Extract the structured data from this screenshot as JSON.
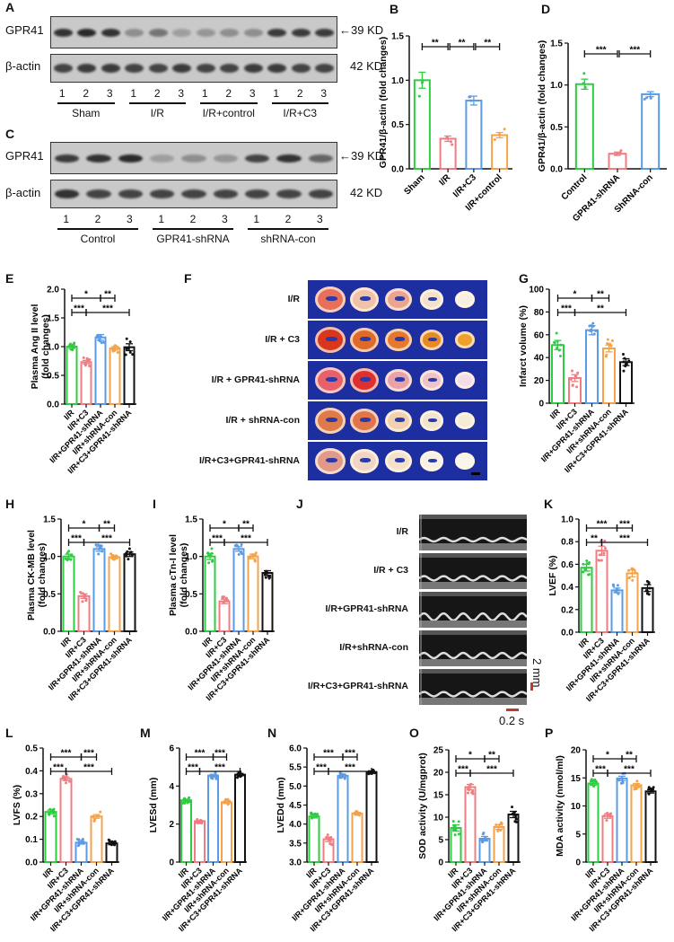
{
  "colors": {
    "green": "#2ecc40",
    "pink": "#f07c82",
    "blue": "#5b9be6",
    "orange": "#f4a34a",
    "black": "#111111",
    "ttc_bg": "#1d2fa0",
    "scale_red": "#c0392b"
  },
  "panelA": {
    "label": "A",
    "rows": [
      "GPR41",
      "β-actin"
    ],
    "kd": [
      "39 KD",
      "42 KD"
    ],
    "lanes": [
      "1",
      "2",
      "3",
      "1",
      "2",
      "3",
      "1",
      "2",
      "3",
      "1",
      "2",
      "3"
    ],
    "groups": [
      "Sham",
      "I/R",
      "I/R+control",
      "I/R+C3"
    ]
  },
  "panelC": {
    "label": "C",
    "rows": [
      "GPR41",
      "β-actin"
    ],
    "kd": [
      "39 KD",
      "42 KD"
    ],
    "lanes": [
      "1",
      "2",
      "3",
      "1",
      "2",
      "3",
      "1",
      "2",
      "3"
    ],
    "groups": [
      "Control",
      "GPR41-shRNA",
      "shRNA-con"
    ]
  },
  "panelF": {
    "label": "F",
    "rows": [
      "I/R",
      "I/R + C3",
      "I/R + GPR41-shRNA",
      "I/R + shRNA-con",
      "I/R+C3+GPR41-shRNA"
    ]
  },
  "panelJ": {
    "label": "J",
    "rows": [
      "I/R",
      "I/R + C3",
      "I/R+GPR41-shRNA",
      "I/R+shRNA-con",
      "I/R+C3+GPR41-shRNA"
    ],
    "scale_v": "2 mm",
    "scale_h": "0.2 s"
  },
  "chart_data": [
    {
      "panel": "B",
      "type": "bar",
      "title": "",
      "ylabel": "GPR41/β-actin (fold changes)",
      "categories": [
        "Sham",
        "I/R",
        "I/R+C3",
        "I/R+control"
      ],
      "values": [
        1.0,
        0.34,
        0.77,
        0.38
      ],
      "errors": [
        0.09,
        0.03,
        0.05,
        0.03
      ],
      "colors": [
        "#2ecc40",
        "#f07c82",
        "#5b9be6",
        "#f4a34a"
      ],
      "ylim": [
        0,
        1.5
      ],
      "yticks": [
        0.0,
        0.5,
        1.0,
        1.5
      ],
      "significance": [
        {
          "from": 0,
          "to": 1,
          "label": "**",
          "level": 0
        },
        {
          "from": 1,
          "to": 2,
          "label": "**",
          "level": 0
        },
        {
          "from": 2,
          "to": 3,
          "label": "**",
          "level": 0
        }
      ]
    },
    {
      "panel": "D",
      "type": "bar",
      "ylabel": "GPR41/β-actin (fold changes)",
      "categories": [
        "Control",
        "GPR41-shRNA",
        "ShRNA-con"
      ],
      "values": [
        1.01,
        0.18,
        0.89
      ],
      "errors": [
        0.06,
        0.02,
        0.03
      ],
      "colors": [
        "#2ecc40",
        "#f07c82",
        "#5b9be6"
      ],
      "ylim": [
        0,
        1.5
      ],
      "yticks": [
        0.0,
        0.5,
        1.0,
        1.5
      ],
      "significance": [
        {
          "from": 0,
          "to": 1,
          "label": "***",
          "level": 0
        },
        {
          "from": 1,
          "to": 2,
          "label": "***",
          "level": 0
        }
      ]
    },
    {
      "panel": "E",
      "type": "bar",
      "ylabel": "Plasma Ang II level (fold changes)",
      "categories": [
        "I/R",
        "I/R+C3",
        "I/R+GPR41-shRNA",
        "I/R+shRNA-con",
        "I/R+C3+GPR41-shRNA"
      ],
      "values": [
        1.0,
        0.73,
        1.16,
        0.97,
        0.99
      ],
      "errors": [
        0.03,
        0.03,
        0.05,
        0.03,
        0.06
      ],
      "colors": [
        "#2ecc40",
        "#f07c82",
        "#5b9be6",
        "#f4a34a",
        "#111111"
      ],
      "ylim": [
        0,
        2.0
      ],
      "yticks": [
        0.0,
        0.5,
        1.0,
        1.5,
        2.0
      ],
      "significance": [
        {
          "from": 0,
          "to": 2,
          "label": "*",
          "level": 1
        },
        {
          "from": 2,
          "to": 3,
          "label": "**",
          "level": 1
        },
        {
          "from": 0,
          "to": 1,
          "label": "***",
          "level": 0
        },
        {
          "from": 1,
          "to": 4,
          "label": "***",
          "level": 0
        }
      ]
    },
    {
      "panel": "G",
      "type": "bar",
      "ylabel": "Infarct volume (%)",
      "categories": [
        "I/R",
        "I/R+C3",
        "I/R+GPR41-shRNA",
        "I/R+shRNA-con",
        "I/R+C3+GPR41-shRNA"
      ],
      "values": [
        51,
        22,
        64,
        48,
        36
      ],
      "errors": [
        4,
        3,
        4,
        3,
        3
      ],
      "colors": [
        "#2ecc40",
        "#f07c82",
        "#5b9be6",
        "#f4a34a",
        "#111111"
      ],
      "ylim": [
        0,
        100
      ],
      "yticks": [
        0,
        20,
        40,
        60,
        80,
        100
      ],
      "significance": [
        {
          "from": 0,
          "to": 2,
          "label": "*",
          "level": 1
        },
        {
          "from": 2,
          "to": 3,
          "label": "**",
          "level": 1
        },
        {
          "from": 0,
          "to": 1,
          "label": "***",
          "level": 0
        },
        {
          "from": 1,
          "to": 4,
          "label": "**",
          "level": 0
        }
      ]
    },
    {
      "panel": "H",
      "type": "bar",
      "ylabel": "Plasma CK-MB level (fold changes)",
      "categories": [
        "I/R",
        "I/R+C3",
        "I/R+GPR41-shRNA",
        "I/R+shRNA-con",
        "I/R+C3+GPR41-shRNA"
      ],
      "values": [
        1.0,
        0.47,
        1.1,
        0.99,
        1.03
      ],
      "errors": [
        0.03,
        0.03,
        0.03,
        0.02,
        0.03
      ],
      "colors": [
        "#2ecc40",
        "#f07c82",
        "#5b9be6",
        "#f4a34a",
        "#111111"
      ],
      "ylim": [
        0,
        1.5
      ],
      "yticks": [
        0.0,
        0.5,
        1.0,
        1.5
      ],
      "significance": [
        {
          "from": 0,
          "to": 2,
          "label": "*",
          "level": 1
        },
        {
          "from": 2,
          "to": 3,
          "label": "**",
          "level": 1
        },
        {
          "from": 0,
          "to": 1,
          "label": "***",
          "level": 0
        },
        {
          "from": 1,
          "to": 4,
          "label": "***",
          "level": 0
        }
      ]
    },
    {
      "panel": "I",
      "type": "bar",
      "ylabel": "Plasma cTn-I level (fold changes)",
      "categories": [
        "I/R",
        "I/R+C3",
        "I/R+GPR41-shRNA",
        "I/R+shRNA-con",
        "I/R+C3+GPR41-shRNA"
      ],
      "values": [
        1.0,
        0.4,
        1.1,
        1.0,
        0.78
      ],
      "errors": [
        0.04,
        0.03,
        0.03,
        0.03,
        0.03
      ],
      "colors": [
        "#2ecc40",
        "#f07c82",
        "#5b9be6",
        "#f4a34a",
        "#111111"
      ],
      "ylim": [
        0,
        1.5
      ],
      "yticks": [
        0.0,
        0.5,
        1.0,
        1.5
      ],
      "significance": [
        {
          "from": 0,
          "to": 2,
          "label": "*",
          "level": 1
        },
        {
          "from": 2,
          "to": 3,
          "label": "**",
          "level": 1
        },
        {
          "from": 0,
          "to": 1,
          "label": "***",
          "level": 0
        },
        {
          "from": 1,
          "to": 4,
          "label": "***",
          "level": 0
        }
      ]
    },
    {
      "panel": "K",
      "type": "bar",
      "ylabel": "LVEF (%)",
      "categories": [
        "I/R",
        "I/R+C3",
        "I/R+GPR41-shRNA",
        "I/R+shRNA-con",
        "I/R+C3+GPR41-shRNA"
      ],
      "values": [
        0.57,
        0.72,
        0.37,
        0.52,
        0.39
      ],
      "errors": [
        0.03,
        0.04,
        0.02,
        0.03,
        0.03
      ],
      "colors": [
        "#2ecc40",
        "#f07c82",
        "#5b9be6",
        "#f4a34a",
        "#111111"
      ],
      "ylim": [
        0,
        1.0
      ],
      "yticks": [
        0.0,
        0.2,
        0.4,
        0.6,
        0.8,
        1.0
      ],
      "significance": [
        {
          "from": 0,
          "to": 2,
          "label": "***",
          "level": 1
        },
        {
          "from": 2,
          "to": 3,
          "label": "***",
          "level": 1
        },
        {
          "from": 0,
          "to": 1,
          "label": "**",
          "level": 0
        },
        {
          "from": 1,
          "to": 4,
          "label": "***",
          "level": 0
        }
      ]
    },
    {
      "panel": "L",
      "type": "bar",
      "ylabel": "LVFS (%)",
      "categories": [
        "I/R",
        "I/R+C3",
        "I/R+GPR41-shRNA",
        "I/R+shRNA-con",
        "I/R+C3+GPR41-shRNA"
      ],
      "values": [
        0.22,
        0.365,
        0.085,
        0.2,
        0.082
      ],
      "errors": [
        0.008,
        0.008,
        0.006,
        0.008,
        0.006
      ],
      "colors": [
        "#2ecc40",
        "#f07c82",
        "#5b9be6",
        "#f4a34a",
        "#111111"
      ],
      "ylim": [
        0,
        0.5
      ],
      "yticks": [
        0.0,
        0.1,
        0.2,
        0.3,
        0.4,
        0.5
      ],
      "significance": [
        {
          "from": 0,
          "to": 2,
          "label": "***",
          "level": 1
        },
        {
          "from": 2,
          "to": 3,
          "label": "***",
          "level": 1
        },
        {
          "from": 0,
          "to": 1,
          "label": "***",
          "level": 0
        },
        {
          "from": 1,
          "to": 4,
          "label": "***",
          "level": 0
        }
      ]
    },
    {
      "panel": "M",
      "type": "bar",
      "ylabel": "LVESd (mm)",
      "categories": [
        "I/R",
        "I/R+C3",
        "I/R+GPR41-shRNA",
        "I/R+shRNA-con",
        "I/R+C3+GPR41-shRNA"
      ],
      "values": [
        3.25,
        2.15,
        4.55,
        3.15,
        4.6
      ],
      "errors": [
        0.06,
        0.04,
        0.07,
        0.06,
        0.06
      ],
      "colors": [
        "#2ecc40",
        "#f07c82",
        "#5b9be6",
        "#f4a34a",
        "#111111"
      ],
      "ylim": [
        0,
        6
      ],
      "yticks": [
        0,
        2,
        4,
        6
      ],
      "significance": [
        {
          "from": 0,
          "to": 2,
          "label": "***",
          "level": 1
        },
        {
          "from": 2,
          "to": 3,
          "label": "***",
          "level": 1
        },
        {
          "from": 0,
          "to": 1,
          "label": "***",
          "level": 0
        },
        {
          "from": 1,
          "to": 4,
          "label": "***",
          "level": 0
        }
      ]
    },
    {
      "panel": "N",
      "type": "bar",
      "ylabel": "LVEDd (mm)",
      "categories": [
        "I/R",
        "I/R+C3",
        "I/R+GPR41-shRNA",
        "I/R+shRNA-con",
        "I/R+C3+GPR41-shRNA"
      ],
      "values": [
        4.2,
        3.6,
        5.27,
        4.28,
        5.37
      ],
      "errors": [
        0.04,
        0.06,
        0.04,
        0.03,
        0.03
      ],
      "colors": [
        "#2ecc40",
        "#f07c82",
        "#5b9be6",
        "#f4a34a",
        "#111111"
      ],
      "ylim": [
        3.0,
        6.0
      ],
      "yticks": [
        3.0,
        3.5,
        4.0,
        4.5,
        5.0,
        5.5,
        6.0
      ],
      "significance": [
        {
          "from": 0,
          "to": 2,
          "label": "***",
          "level": 1
        },
        {
          "from": 2,
          "to": 3,
          "label": "***",
          "level": 1
        },
        {
          "from": 0,
          "to": 1,
          "label": "***",
          "level": 0
        },
        {
          "from": 1,
          "to": 4,
          "label": "***",
          "level": 0
        }
      ]
    },
    {
      "panel": "O",
      "type": "bar",
      "ylabel": "SOD activity (U/mgprot)",
      "categories": [
        "I/R",
        "I/R+C3",
        "I/R+GPR41-shRNA",
        "I/R+shRNA-con",
        "I/R+C3+GPR41-shRNA"
      ],
      "values": [
        7.6,
        16.7,
        5.2,
        7.8,
        10.6
      ],
      "errors": [
        0.7,
        0.6,
        0.5,
        0.5,
        0.7
      ],
      "colors": [
        "#2ecc40",
        "#f07c82",
        "#5b9be6",
        "#f4a34a",
        "#111111"
      ],
      "ylim": [
        0,
        25
      ],
      "yticks": [
        0,
        5,
        10,
        15,
        20,
        25
      ],
      "significance": [
        {
          "from": 0,
          "to": 2,
          "label": "*",
          "level": 1
        },
        {
          "from": 2,
          "to": 3,
          "label": "**",
          "level": 1
        },
        {
          "from": 0,
          "to": 1,
          "label": "***",
          "level": 0
        },
        {
          "from": 1,
          "to": 4,
          "label": "***",
          "level": 0
        }
      ]
    },
    {
      "panel": "P",
      "type": "bar",
      "ylabel": "MDA activity (nmol/ml)",
      "categories": [
        "I/R",
        "I/R+C3",
        "I/R+GPR41-shRNA",
        "I/R+shRNA-con",
        "I/R+C3+GPR41-shRNA"
      ],
      "values": [
        14.0,
        8.2,
        14.9,
        13.7,
        12.6
      ],
      "errors": [
        0.3,
        0.4,
        0.4,
        0.3,
        0.3
      ],
      "colors": [
        "#2ecc40",
        "#f07c82",
        "#5b9be6",
        "#f4a34a",
        "#111111"
      ],
      "ylim": [
        0,
        20
      ],
      "yticks": [
        0,
        5,
        10,
        15,
        20
      ],
      "significance": [
        {
          "from": 0,
          "to": 2,
          "label": "*",
          "level": 1
        },
        {
          "from": 2,
          "to": 3,
          "label": "**",
          "level": 1
        },
        {
          "from": 0,
          "to": 1,
          "label": "***",
          "level": 0
        },
        {
          "from": 1,
          "to": 4,
          "label": "***",
          "level": 0
        }
      ]
    }
  ]
}
